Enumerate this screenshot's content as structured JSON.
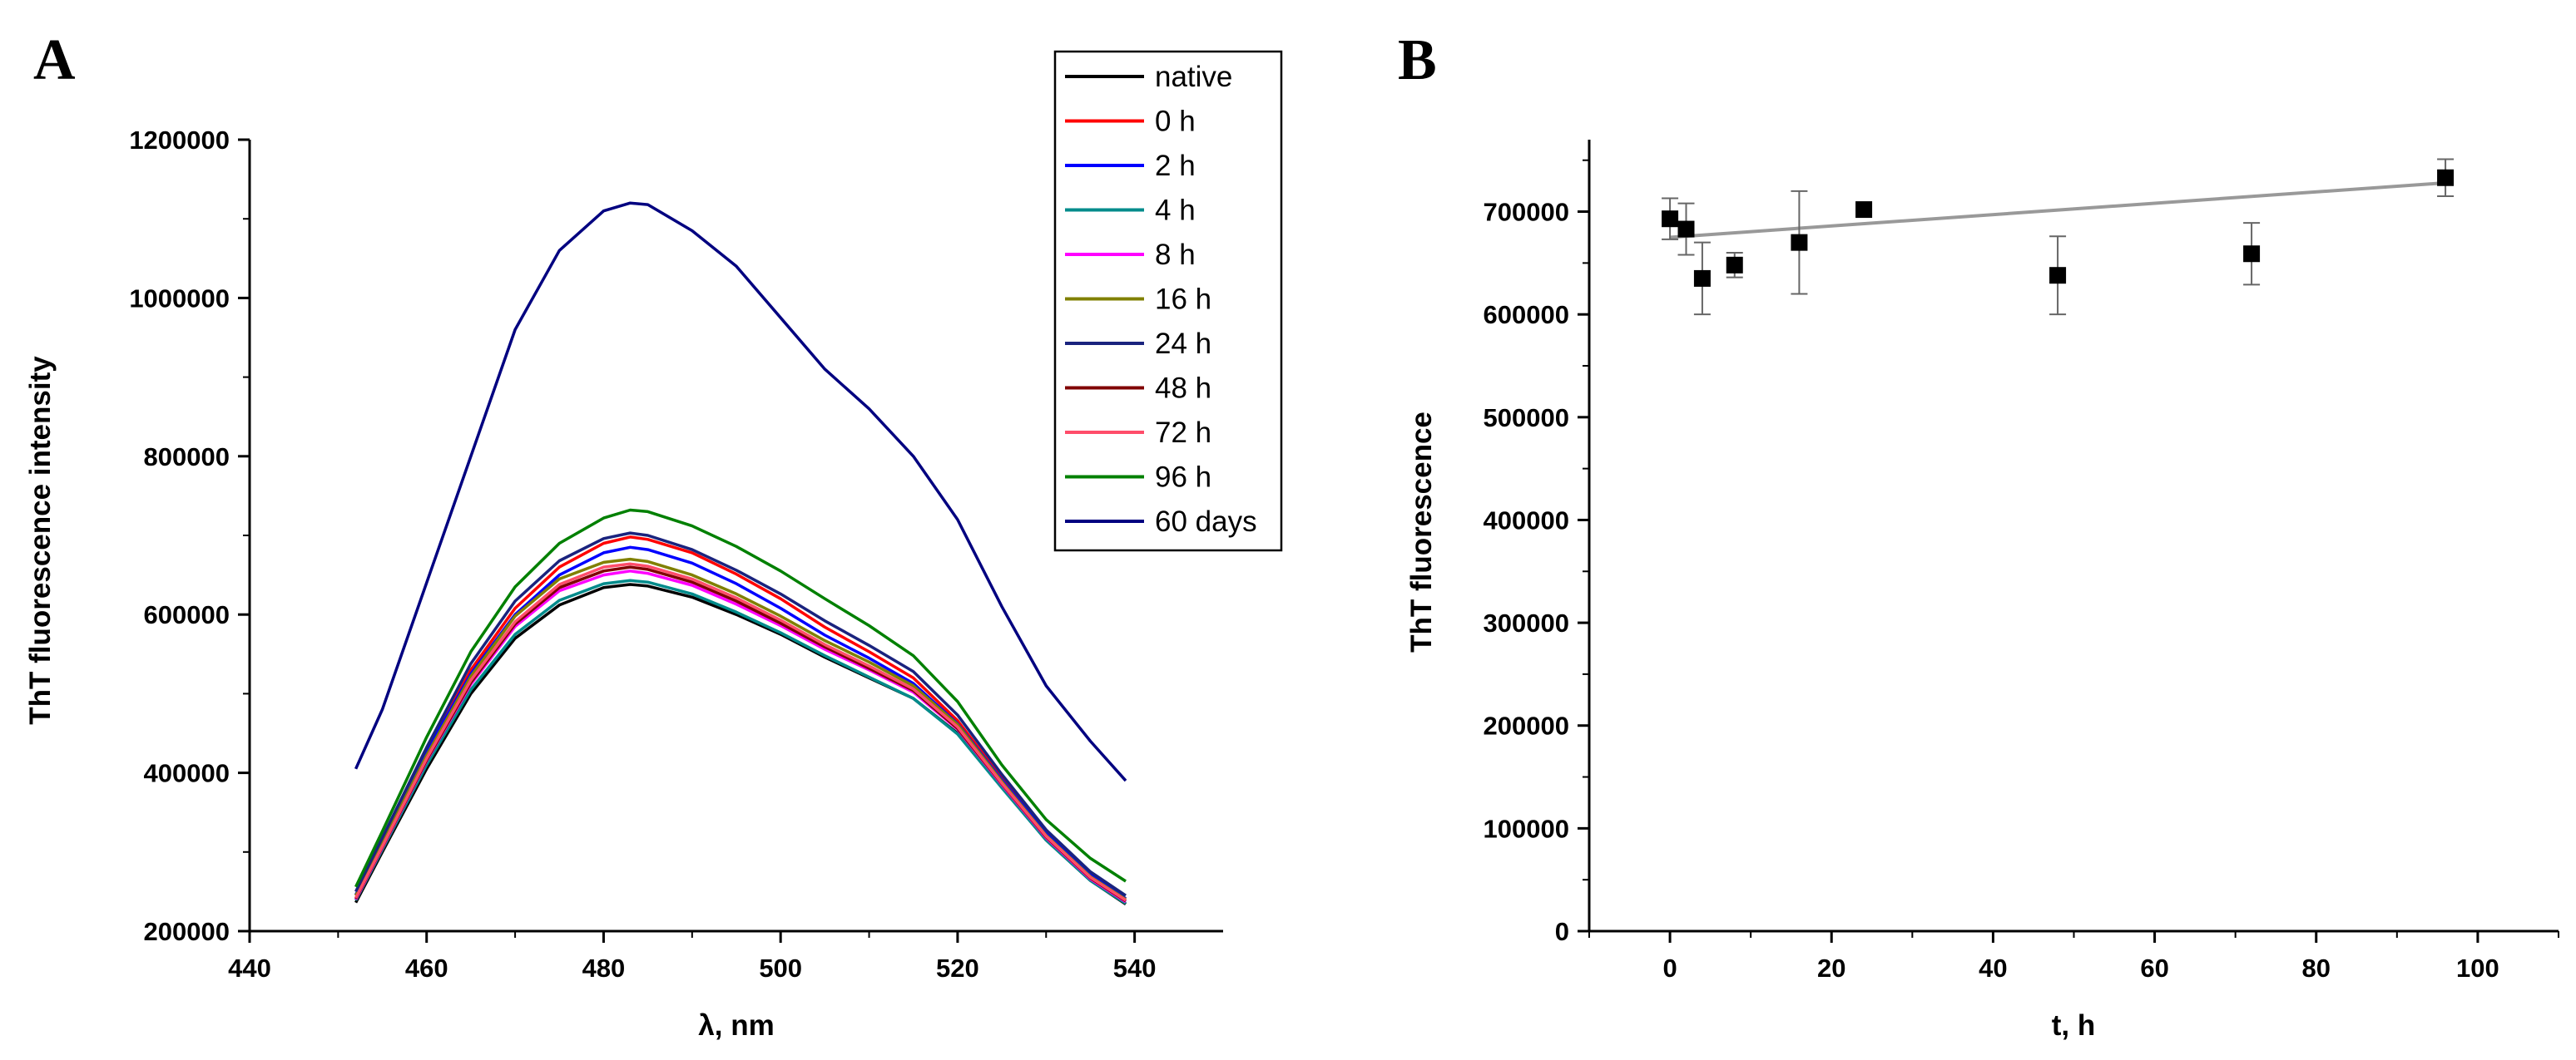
{
  "panels": [
    {
      "letter": "A"
    },
    {
      "letter": "B"
    }
  ],
  "chart_data": [
    {
      "type": "line",
      "panel": "A",
      "title": "",
      "xlabel": "λ, nm",
      "ylabel": "ThT fluorescence intensity",
      "xlim": [
        440,
        550
      ],
      "ylim": [
        200000,
        1200000
      ],
      "xticks": [
        440,
        460,
        480,
        500,
        520,
        540
      ],
      "yticks": [
        200000,
        400000,
        600000,
        800000,
        1000000,
        1200000
      ],
      "x": [
        452,
        455,
        460,
        465,
        470,
        475,
        480,
        483,
        485,
        490,
        495,
        500,
        505,
        510,
        515,
        520,
        525,
        530,
        535,
        539
      ],
      "legend_position": "top-right",
      "series": [
        {
          "name": "native",
          "color": "#000000",
          "values": [
            236000,
            300000,
            405000,
            500000,
            570000,
            612000,
            634000,
            638000,
            636000,
            622000,
            600000,
            575000,
            546000,
            520000,
            494000,
            450000,
            382000,
            315000,
            264000,
            234000
          ]
        },
        {
          "name": "0 h",
          "color": "#ff0000",
          "values": [
            245000,
            312000,
            425000,
            530000,
            608000,
            660000,
            690000,
            698000,
            695000,
            678000,
            651000,
            620000,
            584000,
            553000,
            520000,
            466000,
            393000,
            324000,
            271000,
            241000
          ]
        },
        {
          "name": "2 h",
          "color": "#0000ff",
          "values": [
            246000,
            313000,
            427000,
            525000,
            600000,
            650000,
            678000,
            685000,
            682000,
            665000,
            639000,
            608000,
            574000,
            545000,
            513000,
            462000,
            391000,
            323000,
            271000,
            241000
          ]
        },
        {
          "name": "4 h",
          "color": "#008b8b",
          "values": [
            239000,
            303000,
            410000,
            505000,
            575000,
            618000,
            639000,
            643000,
            641000,
            626000,
            603000,
            577000,
            548000,
            521000,
            494000,
            449000,
            381000,
            315000,
            264000,
            235000
          ]
        },
        {
          "name": "8 h",
          "color": "#ff00ff",
          "values": [
            240000,
            305000,
            415000,
            512000,
            585000,
            630000,
            650000,
            655000,
            652000,
            637000,
            613000,
            586000,
            556000,
            530000,
            502000,
            455000,
            385000,
            318000,
            266000,
            237000
          ]
        },
        {
          "name": "16 h",
          "color": "#808000",
          "values": [
            245000,
            311000,
            422000,
            522000,
            598000,
            645000,
            666000,
            670000,
            667000,
            650000,
            626000,
            598000,
            567000,
            540000,
            510000,
            461000,
            389000,
            321000,
            269000,
            240000
          ]
        },
        {
          "name": "24 h",
          "color": "#1a237e",
          "values": [
            250000,
            318000,
            432000,
            538000,
            617000,
            668000,
            696000,
            703000,
            700000,
            682000,
            656000,
            626000,
            592000,
            561000,
            528000,
            473000,
            398000,
            328000,
            275000,
            245000
          ]
        },
        {
          "name": "48 h",
          "color": "#800000",
          "values": [
            241000,
            306000,
            416000,
            514000,
            588000,
            634000,
            655000,
            660000,
            657000,
            641000,
            617000,
            589000,
            559000,
            532000,
            504000,
            456000,
            386000,
            319000,
            267000,
            238000
          ]
        },
        {
          "name": "72 h",
          "color": "#ff4d6a",
          "values": [
            242000,
            307000,
            418000,
            517000,
            591000,
            638000,
            660000,
            664000,
            661000,
            645000,
            621000,
            593000,
            562000,
            535000,
            506000,
            458000,
            387000,
            320000,
            268000,
            239000
          ]
        },
        {
          "name": "96 h",
          "color": "#008000",
          "values": [
            256000,
            326000,
            445000,
            553000,
            635000,
            690000,
            722000,
            732000,
            730000,
            712000,
            686000,
            655000,
            620000,
            586000,
            548000,
            490000,
            410000,
            341000,
            292000,
            263000
          ]
        },
        {
          "name": "60 days",
          "color": "#000080",
          "values": [
            405000,
            480000,
            640000,
            800000,
            960000,
            1060000,
            1110000,
            1120000,
            1118000,
            1085000,
            1040000,
            975000,
            910000,
            860000,
            800000,
            720000,
            610000,
            510000,
            440000,
            390000
          ]
        }
      ]
    },
    {
      "type": "scatter",
      "panel": "B",
      "title": "",
      "xlabel": "t, h",
      "ylabel": "ThT fluorescence",
      "xlim": [
        -10,
        110
      ],
      "ylim": [
        0,
        770000
      ],
      "xticks": [
        0,
        20,
        40,
        60,
        80,
        100
      ],
      "yticks": [
        0,
        100000,
        200000,
        300000,
        400000,
        500000,
        600000,
        700000
      ],
      "x": [
        0,
        2,
        4,
        8,
        16,
        24,
        48,
        72,
        96
      ],
      "y": [
        693000,
        683000,
        635000,
        648000,
        670000,
        702000,
        638000,
        659000,
        733000
      ],
      "err": [
        20000,
        25000,
        35000,
        12000,
        50000,
        0,
        38000,
        30000,
        18000
      ],
      "fit": {
        "x": [
          0,
          96
        ],
        "y": [
          675000,
          728000
        ],
        "color": "#999999"
      }
    }
  ]
}
